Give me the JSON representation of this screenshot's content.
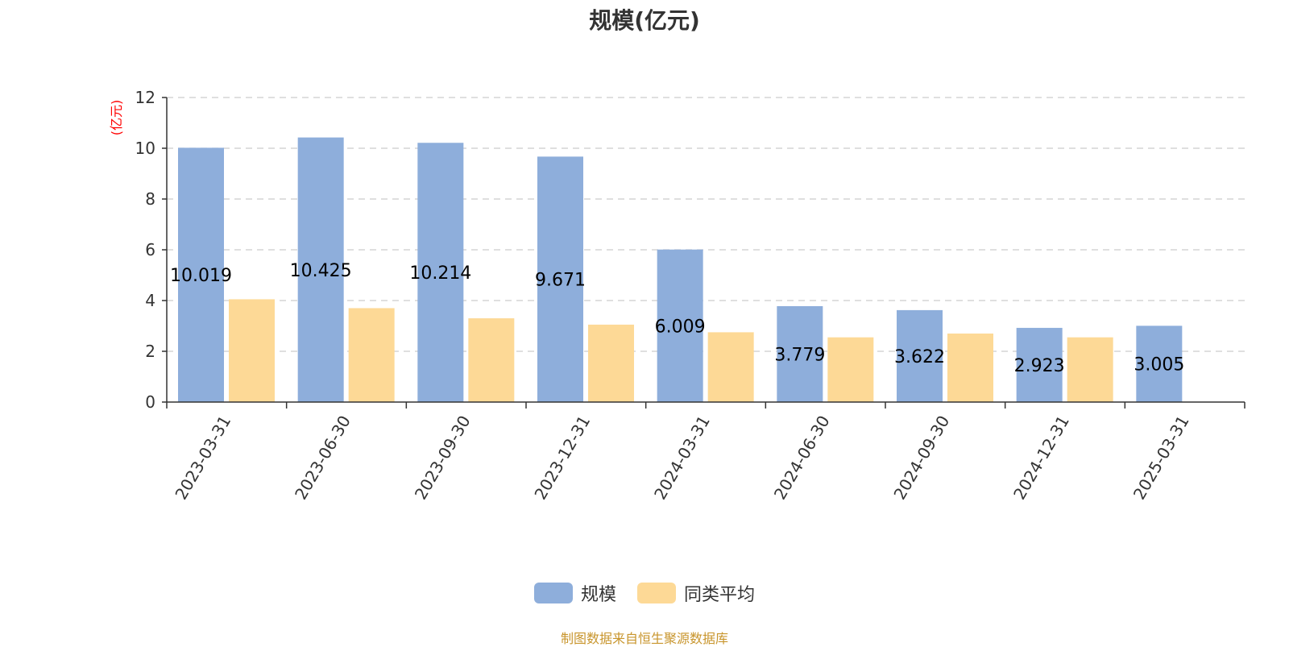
{
  "chart_data": {
    "type": "bar",
    "title": "规模(亿元)",
    "ylabel": "(亿元)",
    "xlabel": "",
    "categories": [
      "2023-03-31",
      "2023-06-30",
      "2023-09-30",
      "2023-12-31",
      "2024-03-31",
      "2024-06-30",
      "2024-09-30",
      "2024-12-31",
      "2025-03-31"
    ],
    "series": [
      {
        "name": "规模",
        "color": "#8eaedb",
        "values": [
          10.019,
          10.425,
          10.214,
          9.671,
          6.009,
          3.779,
          3.622,
          2.923,
          3.005
        ]
      },
      {
        "name": "同类平均",
        "color": "#fdd996",
        "values": [
          4.05,
          3.7,
          3.3,
          3.05,
          2.75,
          2.55,
          2.7,
          2.55,
          null
        ]
      }
    ],
    "ylim": [
      0,
      12
    ],
    "yticks": [
      0,
      2,
      4,
      6,
      8,
      10,
      12
    ],
    "grid": true,
    "legend_position": "bottom-center",
    "data_labels_series": "规模"
  },
  "source_note": "制图数据来自恒生聚源数据库"
}
